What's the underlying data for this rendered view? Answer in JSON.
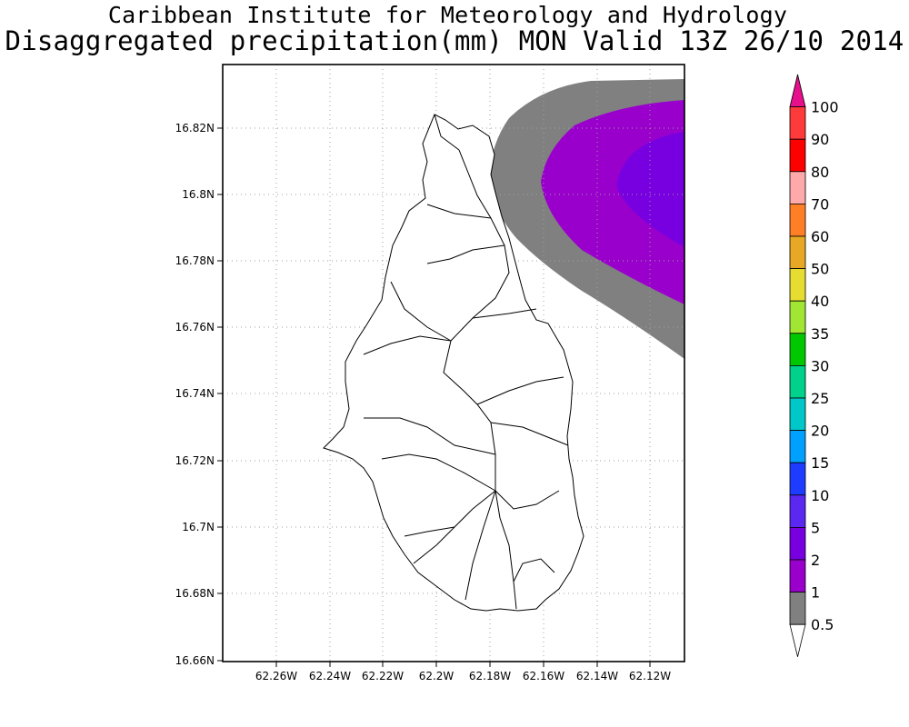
{
  "titles": {
    "line1": "Caribbean Institute for Meteorology and Hydrology",
    "line2": "Disaggregated precipitation(mm) MON Valid 13Z 26/10 2014"
  },
  "map": {
    "region": "Montserrat",
    "lat_ticks": [
      "16.82N",
      "16.8N",
      "16.78N",
      "16.76N",
      "16.74N",
      "16.72N",
      "16.7N",
      "16.68N",
      "16.66N"
    ],
    "lon_ticks": [
      "62.26W",
      "62.24W",
      "62.22W",
      "62.2W",
      "62.18W",
      "62.16W",
      "62.14W",
      "62.12W"
    ],
    "grid": "dotted",
    "precip_shading": [
      {
        "level_mm": "0.5-1",
        "color": "#808080"
      },
      {
        "level_mm": "1-2",
        "color": "#9a00cc"
      },
      {
        "level_mm": "2-5",
        "color": "#7800e0"
      }
    ]
  },
  "colorbar": {
    "labels": [
      "100",
      "90",
      "80",
      "70",
      "60",
      "50",
      "40",
      "35",
      "30",
      "25",
      "20",
      "15",
      "10",
      "5",
      "2",
      "1",
      "0.5"
    ],
    "colors": [
      "#e60f8c",
      "#ff3a3a",
      "#ff0000",
      "#ffaaaa",
      "#ff7f27",
      "#e6a825",
      "#e6dc32",
      "#a0e632",
      "#00c800",
      "#00d28c",
      "#00c8c8",
      "#00a0ff",
      "#1e3cff",
      "#5a28f0",
      "#7800e0",
      "#9a00cc",
      "#808080",
      "#ffffff"
    ]
  }
}
